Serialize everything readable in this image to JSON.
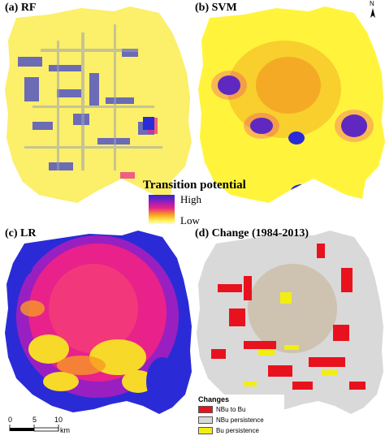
{
  "panels": [
    {
      "label": "(a) RF"
    },
    {
      "label": "(b) SVM"
    },
    {
      "label": "(c) LR"
    },
    {
      "label": "(d) Change (1984-2013)"
    }
  ],
  "legend": {
    "title": "Transition potential",
    "high": "High",
    "low": "Low"
  },
  "changes_legend": {
    "title": "Changes",
    "items": [
      {
        "label": "NBu to Bu",
        "color": "#e8121e"
      },
      {
        "label": "NBu persistence",
        "color": "#d9d9d9"
      },
      {
        "label": "Bu persistence",
        "color": "#f2ee13"
      }
    ]
  },
  "scale_bar": {
    "ticks": [
      "0",
      "5",
      "10"
    ],
    "unit": "km"
  },
  "north_arrow": {
    "label": "N"
  },
  "colors": {
    "high": "#2a2bd6",
    "mid": "#e8228a",
    "low": "#fff15a",
    "persistence": "#d9d9d9",
    "change": "#e8121e"
  }
}
